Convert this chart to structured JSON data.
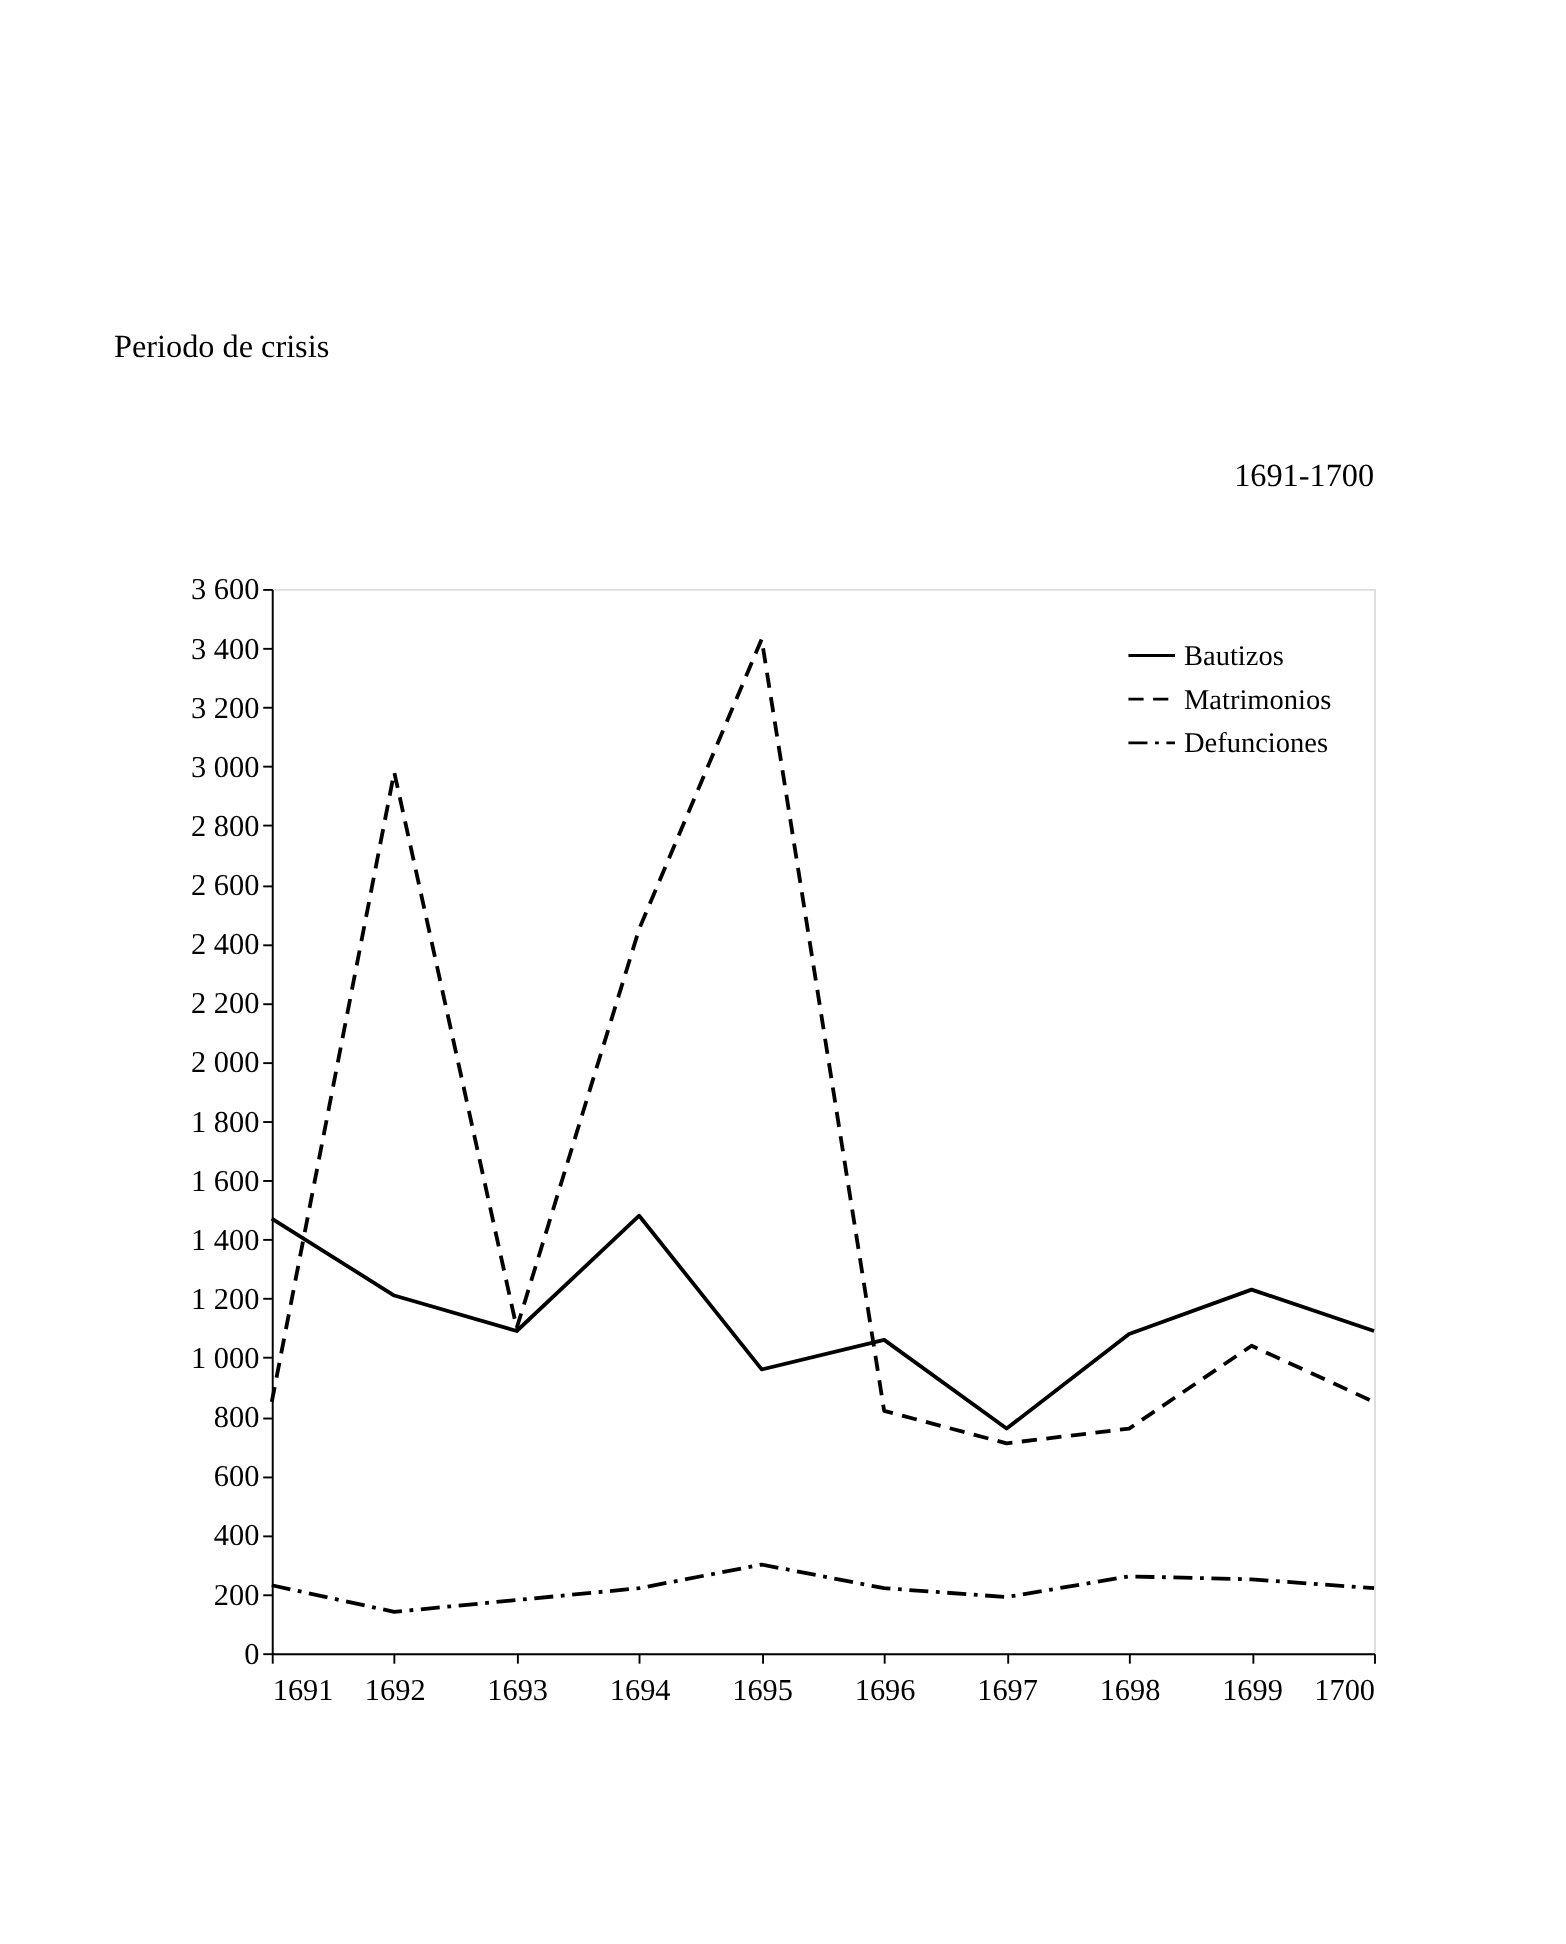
{
  "chart_data": {
    "type": "line",
    "title": "Periodo de crisis",
    "annotations": [
      "1691-1700"
    ],
    "x": [
      1691,
      1692,
      1693,
      1694,
      1695,
      1696,
      1697,
      1698,
      1699,
      1700
    ],
    "series": [
      {
        "name": "Bautizos",
        "color": "#000000",
        "line_style": "solid",
        "values": [
          1470,
          1210,
          1090,
          1480,
          960,
          1060,
          760,
          1080,
          1230,
          1090
        ]
      },
      {
        "name": "Matrimonios",
        "color": "#000000",
        "line_style": "dashed",
        "values": [
          850,
          2980,
          1100,
          2450,
          3430,
          820,
          710,
          760,
          1040,
          850
        ]
      },
      {
        "name": "Defunciones",
        "color": "#000000",
        "line_style": "dashdot",
        "values": [
          230,
          140,
          180,
          220,
          300,
          220,
          190,
          260,
          250,
          220
        ]
      }
    ],
    "xlim": [
      1691,
      1700
    ],
    "xticks": [
      1691,
      1692,
      1693,
      1694,
      1695,
      1696,
      1697,
      1698,
      1699,
      1700
    ],
    "ylim": [
      0,
      3600
    ],
    "yticks": [
      0,
      200,
      400,
      600,
      800,
      {
        "value": 1000,
        "label": "1 000"
      },
      {
        "value": 1200,
        "label": "1 200"
      },
      {
        "value": 1400,
        "label": "1 400"
      },
      {
        "value": 1600,
        "label": "1 600"
      },
      {
        "value": 1800,
        "label": "1 800"
      },
      {
        "value": 2000,
        "label": "2 000"
      },
      {
        "value": 2200,
        "label": "2 200"
      },
      {
        "value": 2400,
        "label": "2 400"
      },
      {
        "value": 2600,
        "label": "2 600"
      },
      {
        "value": 2800,
        "label": "2 800"
      },
      {
        "value": 3000,
        "label": "3 000"
      },
      {
        "value": 3200,
        "label": "3 200"
      },
      {
        "value": 3400,
        "label": "3 400"
      },
      {
        "value": 3600,
        "label": "3 600"
      }
    ],
    "grid": false,
    "legend": "top right",
    "marker": "none"
  }
}
